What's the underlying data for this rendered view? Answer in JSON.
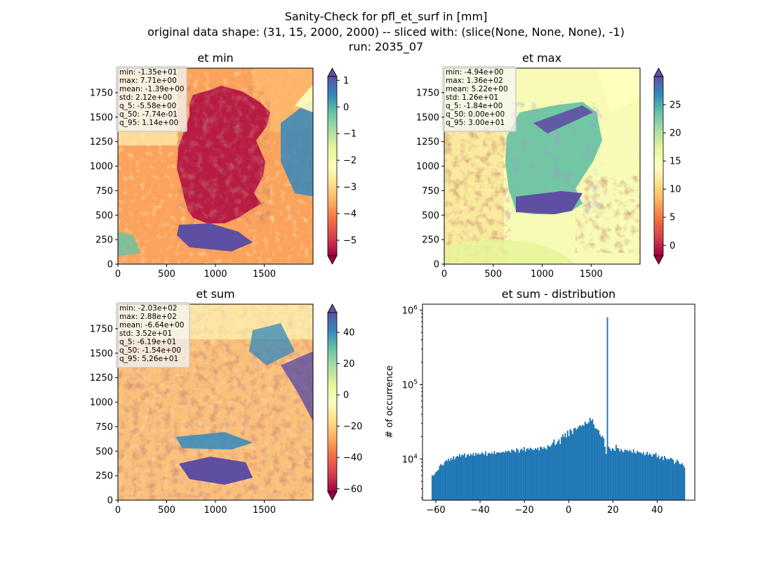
{
  "figure": {
    "title_line1": "Sanity-Check for pfl_et_surf in [mm]",
    "title_line2": "original data shape: (31, 15, 2000, 2000) -- sliced with: (slice(None, None, None), -1)",
    "title_line3": "run: 2035_07"
  },
  "colors": {
    "spectral": [
      "#9e0142",
      "#d53e4f",
      "#f46d43",
      "#fdae61",
      "#fee08b",
      "#ffffbf",
      "#e6f598",
      "#abdda4",
      "#66c2a5",
      "#3288bd",
      "#5e4fa2"
    ],
    "hist_bar": "#1f77b4"
  },
  "panels": [
    {
      "id": "et-min",
      "title": "et min",
      "colorbar": {
        "min": -5.58,
        "max": 1.14,
        "ticks": [
          1,
          0,
          -1,
          -2,
          -3,
          -4,
          -5
        ],
        "tick_labels": [
          "1",
          "0",
          "−1",
          "−2",
          "−3",
          "−4",
          "−5"
        ]
      },
      "stats": [
        "min: -1.35e+01",
        "max: 7.71e+00",
        "mean: -1.39e+00",
        "std: 2.12e+00",
        "q_5: -5.58e+00",
        "q_50: -7.74e-01",
        "q_95: 1.14e+00"
      ]
    },
    {
      "id": "et-max",
      "title": "et max",
      "colorbar": {
        "min": -1.84,
        "max": 30.0,
        "ticks": [
          25,
          20,
          15,
          10,
          5,
          0
        ],
        "tick_labels": [
          "25",
          "20",
          "15",
          "10",
          "5",
          "0"
        ]
      },
      "stats": [
        "min: -4.94e+00",
        "max: 1.36e+02",
        "mean: 5.22e+00",
        "std: 1.26e+01",
        "q_5: -1.84e+00",
        "q_50: 0.00e+00",
        "q_95: 3.00e+01"
      ]
    },
    {
      "id": "et-sum",
      "title": "et sum",
      "colorbar": {
        "min": -61.9,
        "max": 52.6,
        "ticks": [
          40,
          20,
          0,
          -20,
          -40,
          -60
        ],
        "tick_labels": [
          "40",
          "20",
          "0",
          "−20",
          "−40",
          "−60"
        ]
      },
      "stats": [
        "min: -2.03e+02",
        "max: 2.88e+02",
        "mean: -6.64e+00",
        "std: 3.52e+01",
        "q_5: -6.19e+01",
        "q_50: -1.54e+00",
        "q_95: 5.26e+01"
      ]
    }
  ],
  "map_axes": {
    "x_ticks": [
      0,
      500,
      1000,
      1500
    ],
    "x_tick_labels": [
      "0",
      "500",
      "1000",
      "1500"
    ],
    "y_ticks": [
      0,
      250,
      500,
      750,
      1000,
      1250,
      1500,
      1750
    ],
    "y_tick_labels": [
      "0",
      "250",
      "500",
      "750",
      "1000",
      "1250",
      "1500",
      "1750"
    ],
    "xlim": [
      0,
      2000
    ],
    "ylim": [
      0,
      2000
    ]
  },
  "chart_data": {
    "type": "bar",
    "title": "et sum - distribution",
    "xlabel": "",
    "ylabel": "# of occurrence",
    "yscale": "log",
    "xlim": [
      -66,
      57
    ],
    "ylim": [
      2800,
      1200000
    ],
    "x_ticks": [
      -60,
      -40,
      -20,
      0,
      20,
      40
    ],
    "x_tick_labels": [
      "−60",
      "−40",
      "−20",
      "0",
      "20",
      "40"
    ],
    "y_ticks": [
      10000,
      100000,
      1000000
    ],
    "y_tick_labels": [
      "10^4",
      "10^5",
      "10^6"
    ],
    "bin_edges": [
      -61.9,
      52.6
    ],
    "bin_count": 200,
    "values": [
      6050,
      5980,
      6300,
      6700,
      6900,
      7200,
      8100,
      8600,
      8200,
      8300,
      9100,
      9700,
      9400,
      10100,
      9400,
      10300,
      9800,
      10900,
      9900,
      10600,
      11000,
      10800,
      11600,
      10800,
      11500,
      11200,
      11900,
      10500,
      11300,
      11700,
      11000,
      11800,
      11200,
      12000,
      11000,
      12100,
      11400,
      12000,
      11500,
      11600,
      12400,
      11800,
      11400,
      12700,
      11000,
      11900,
      12100,
      11700,
      12200,
      11600,
      12800,
      11700,
      12300,
      12200,
      12400,
      12000,
      12400,
      12500,
      12100,
      12800,
      12500,
      13000,
      12700,
      12200,
      13500,
      13100,
      12900,
      12300,
      14000,
      13300,
      12200,
      13300,
      13800,
      13000,
      14500,
      12600,
      13600,
      14000,
      13300,
      14200,
      13700,
      13200,
      13300,
      14000,
      13500,
      14200,
      13000,
      14600,
      14400,
      13600,
      14500,
      13900,
      13400,
      15300,
      14800,
      14600,
      15500,
      16600,
      18300,
      15300,
      16000,
      17300,
      18400,
      15900,
      19600,
      21500,
      19800,
      22300,
      19600,
      24100,
      20300,
      25300,
      24100,
      21700,
      25800,
      26300,
      24800,
      26000,
      27500,
      28600,
      27300,
      28800,
      27900,
      31800,
      30000,
      29700,
      31100,
      35900,
      32600,
      34300,
      29200,
      25800,
      25700,
      24900,
      24300,
      21300,
      19800,
      20500,
      19000,
      14600,
      11700,
      800000,
      14600,
      13800,
      12900,
      14000,
      13500,
      12800,
      15500,
      14100,
      13900,
      12700,
      13600,
      12800,
      12300,
      13400,
      13200,
      13100,
      12600,
      13300,
      12700,
      12100,
      13500,
      12200,
      11900,
      12900,
      12400,
      12300,
      12200,
      11700,
      12400,
      11200,
      11600,
      12500,
      11300,
      11900,
      11400,
      10800,
      11700,
      11500,
      12100,
      10500,
      11200,
      10000,
      10600,
      10900,
      9700,
      11000,
      10300,
      9800,
      10100,
      9900,
      10400,
      10100,
      9700,
      8600,
      9100,
      9800,
      9300,
      8600,
      8500,
      8800,
      8300,
      7700
    ]
  }
}
